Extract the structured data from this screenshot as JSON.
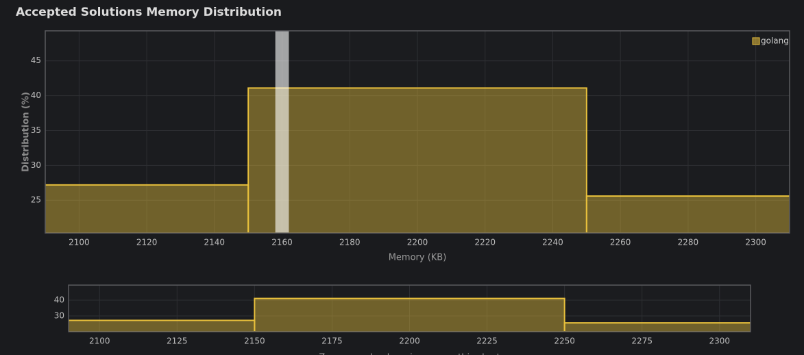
{
  "title": "Accepted Solutions Memory Distribution",
  "chart_data": [
    {
      "type": "histogram",
      "xlabel": "Memory (KB)",
      "ylabel": "Distribution (%)",
      "bins": [
        2050,
        2150,
        2250,
        2350
      ],
      "series": [
        {
          "name": "golang",
          "color": "#e8c03c",
          "values": [
            27.2,
            41.1,
            25.6
          ]
        }
      ],
      "highlight": [
        2158,
        2162
      ],
      "xlim": [
        2090,
        2310
      ],
      "ylim": [
        20.3,
        49.3
      ],
      "xticks": [
        2100,
        2120,
        2140,
        2160,
        2180,
        2200,
        2220,
        2240,
        2260,
        2280,
        2300
      ],
      "yticks": [
        25,
        30,
        35,
        40,
        45
      ],
      "grid": true,
      "legend": "upper right"
    },
    {
      "type": "histogram",
      "bins": [
        2050,
        2150,
        2250,
        2350
      ],
      "series": [
        {
          "color": "#e8c03c",
          "values": [
            27.2,
            41.1,
            25.6
          ]
        }
      ],
      "xlim": [
        2090,
        2310
      ],
      "ylim": [
        20,
        49.6
      ],
      "xticks": [
        2100,
        2125,
        2150,
        2175,
        2200,
        2225,
        2250,
        2275,
        2300
      ],
      "yticks": [
        30,
        40
      ],
      "grid": true,
      "caption": "Zoom area by dragging across this chart"
    }
  ]
}
